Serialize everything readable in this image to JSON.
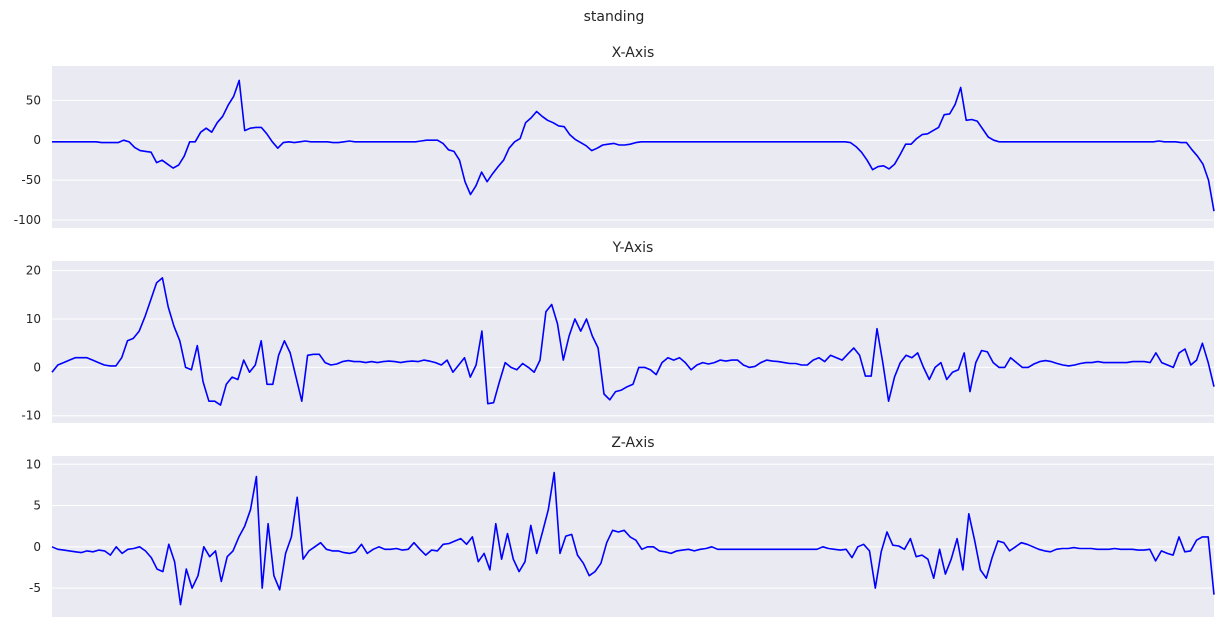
{
  "title": "standing",
  "chart_data": [
    {
      "type": "line",
      "title": "X-Axis",
      "yticks": [
        50,
        0,
        -50,
        -100
      ],
      "ylim": [
        -110,
        93
      ],
      "grid": true,
      "color": "#0000ff",
      "values": [
        -2,
        -2,
        -2,
        -2,
        -2,
        -2,
        -2,
        -2,
        -2,
        -3,
        -3,
        -3,
        -3,
        0,
        -2,
        -9,
        -13,
        -14,
        -15,
        -28,
        -25,
        -30,
        -35,
        -31,
        -20,
        -2,
        -2,
        10,
        15,
        10,
        22,
        30,
        44,
        55,
        75,
        12,
        15,
        16,
        16,
        8,
        -2,
        -10,
        -3,
        -2,
        -3,
        -2,
        -1,
        -2,
        -2,
        -2,
        -2,
        -3,
        -3,
        -2,
        -1,
        -2,
        -2,
        -2,
        -2,
        -2,
        -2,
        -2,
        -2,
        -2,
        -2,
        -2,
        -2,
        -1,
        0,
        0,
        0,
        -4,
        -12,
        -14,
        -25,
        -52,
        -68,
        -57,
        -40,
        -52,
        -42,
        -33,
        -25,
        -10,
        -2,
        2,
        22,
        28,
        36,
        30,
        25,
        22,
        18,
        17,
        7,
        1,
        -3,
        -7,
        -13,
        -10,
        -6,
        -5,
        -4,
        -6,
        -6,
        -5,
        -3,
        -2,
        -2,
        -2,
        -2,
        -2,
        -2,
        -2,
        -2,
        -2,
        -2,
        -2,
        -2,
        -2,
        -2,
        -2,
        -2,
        -2,
        -2,
        -2,
        -2,
        -2,
        -2,
        -2,
        -2,
        -2,
        -2,
        -2,
        -2,
        -2,
        -2,
        -2,
        -2,
        -2,
        -2,
        -2,
        -2,
        -2,
        -2,
        -3,
        -8,
        -15,
        -25,
        -37,
        -33,
        -32,
        -36,
        -30,
        -18,
        -5,
        -5,
        2,
        7,
        8,
        12,
        16,
        32,
        33,
        45,
        66,
        25,
        26,
        24,
        14,
        4,
        0,
        -2,
        -2,
        -2,
        -2,
        -2,
        -2,
        -2,
        -2,
        -2,
        -2,
        -2,
        -2,
        -2,
        -2,
        -2,
        -2,
        -2,
        -2,
        -2,
        -2,
        -2,
        -2,
        -2,
        -2,
        -2,
        -2,
        -2,
        -2,
        -2,
        -1,
        -2,
        -2,
        -2,
        -3,
        -3,
        -12,
        -20,
        -30,
        -50,
        -89
      ]
    },
    {
      "type": "line",
      "title": "Y-Axis",
      "yticks": [
        20,
        10,
        0,
        -10
      ],
      "ylim": [
        -11.5,
        22
      ],
      "grid": true,
      "color": "#0000ff",
      "values": [
        -1,
        0.5,
        1,
        1.5,
        2,
        2,
        2,
        1.5,
        1,
        0.5,
        0.3,
        0.3,
        2,
        5.5,
        6,
        7.5,
        10.5,
        14,
        17.5,
        18.5,
        12.5,
        8.5,
        5.5,
        0,
        -0.5,
        4.5,
        -3,
        -7,
        -7,
        -7.8,
        -3.5,
        -2,
        -2.5,
        1.5,
        -1,
        0.5,
        5.5,
        -3.5,
        -3.5,
        2.5,
        5.5,
        3,
        -2,
        -7,
        2.5,
        2.7,
        2.7,
        1,
        0.5,
        0.7,
        1.2,
        1.4,
        1.2,
        1.2,
        1,
        1.2,
        1,
        1.2,
        1.3,
        1.2,
        1,
        1.2,
        1.3,
        1.2,
        1.5,
        1.3,
        1,
        0.5,
        1.5,
        -1,
        0.5,
        2,
        -2,
        0.5,
        7.5,
        -7.5,
        -7.3,
        -3,
        1,
        0,
        -0.5,
        0.8,
        0,
        -1,
        1.5,
        11.5,
        13,
        9,
        1.5,
        6.5,
        10,
        7.5,
        10,
        6.5,
        4,
        -5.5,
        -6.7,
        -5,
        -4.7,
        -4,
        -3.5,
        0,
        0,
        -0.5,
        -1.5,
        1,
        2,
        1.5,
        2,
        1,
        -0.5,
        0.5,
        1,
        0.7,
        1,
        1.5,
        1.3,
        1.5,
        1.5,
        0.5,
        0,
        0.2,
        1,
        1.5,
        1.3,
        1.2,
        1,
        0.8,
        0.8,
        0.5,
        0.5,
        1.5,
        2,
        1.2,
        2.5,
        2,
        1.5,
        2.8,
        4,
        2.5,
        -1.8,
        -1.8,
        8,
        1,
        -7,
        -2,
        1,
        2.5,
        2,
        3,
        0,
        -2.5,
        0,
        1,
        -2.5,
        -1,
        -0.5,
        3,
        -5,
        1,
        3.5,
        3.2,
        1,
        0,
        0,
        2,
        1,
        0,
        0,
        0.7,
        1.2,
        1.4,
        1.2,
        0.8,
        0.5,
        0.3,
        0.5,
        0.8,
        1,
        1,
        1.2,
        1,
        1,
        1,
        1,
        1,
        1.2,
        1.2,
        1.2,
        1,
        3,
        1,
        0.5,
        0,
        3,
        3.8,
        0.5,
        1.5,
        5,
        1,
        -4
      ]
    },
    {
      "type": "line",
      "title": "Z-Axis",
      "yticks": [
        10,
        5,
        0,
        -5
      ],
      "ylim": [
        -8.5,
        11
      ],
      "grid": true,
      "color": "#0000ff",
      "values": [
        0,
        -0.3,
        -0.4,
        -0.5,
        -0.6,
        -0.7,
        -0.5,
        -0.6,
        -0.4,
        -0.5,
        -1,
        0,
        -0.8,
        -0.3,
        -0.2,
        0,
        -0.5,
        -1.3,
        -2.7,
        -3,
        0.3,
        -1.8,
        -7,
        -2.7,
        -5,
        -3.5,
        0,
        -1.2,
        -0.5,
        -4.2,
        -1.2,
        -0.5,
        1.2,
        2.5,
        4.5,
        8.5,
        -5,
        2.8,
        -3.5,
        -5.2,
        -0.8,
        1.2,
        6,
        -1.5,
        -0.5,
        0,
        0.5,
        -0.3,
        -0.5,
        -0.5,
        -0.7,
        -0.8,
        -0.6,
        0.3,
        -0.8,
        -0.3,
        0,
        -0.3,
        -0.3,
        -0.2,
        -0.4,
        -0.3,
        0.5,
        -0.3,
        -1,
        -0.4,
        -0.5,
        0.3,
        0.4,
        0.7,
        1,
        0.3,
        1.2,
        -1.8,
        -0.8,
        -2.8,
        2.8,
        -1.5,
        1.6,
        -1.5,
        -3,
        -1.8,
        2.6,
        -0.8,
        1.8,
        4.5,
        9,
        -0.8,
        1.3,
        1.5,
        -1,
        -2,
        -3.5,
        -3,
        -2,
        0.5,
        2,
        1.8,
        2,
        1.2,
        0.8,
        -0.3,
        0,
        0,
        -0.5,
        -0.6,
        -0.8,
        -0.5,
        -0.4,
        -0.3,
        -0.5,
        -0.3,
        -0.2,
        0,
        -0.3,
        -0.3,
        -0.3,
        -0.3,
        -0.3,
        -0.3,
        -0.3,
        -0.3,
        -0.3,
        -0.3,
        -0.3,
        -0.3,
        -0.3,
        -0.3,
        -0.3,
        -0.3,
        -0.3,
        -0.3,
        0,
        -0.2,
        -0.3,
        -0.4,
        -0.3,
        -1.3,
        0,
        0.3,
        -0.5,
        -5,
        -0.6,
        1.8,
        0.2,
        0.1,
        -0.3,
        1,
        -1.2,
        -1,
        -1.5,
        -3.8,
        -0.3,
        -3.3,
        -1.5,
        1,
        -2.8,
        4,
        0.8,
        -2.8,
        -3.8,
        -1.3,
        0.7,
        0.5,
        -0.5,
        0,
        0.5,
        0.3,
        0,
        -0.3,
        -0.5,
        -0.6,
        -0.3,
        -0.2,
        -0.2,
        -0.1,
        -0.2,
        -0.2,
        -0.2,
        -0.3,
        -0.3,
        -0.3,
        -0.2,
        -0.3,
        -0.3,
        -0.3,
        -0.4,
        -0.4,
        -0.3,
        -1.7,
        -0.5,
        -0.8,
        -1,
        1.2,
        -0.6,
        -0.5,
        0.8,
        1.2,
        1.2,
        -5.8
      ]
    }
  ]
}
